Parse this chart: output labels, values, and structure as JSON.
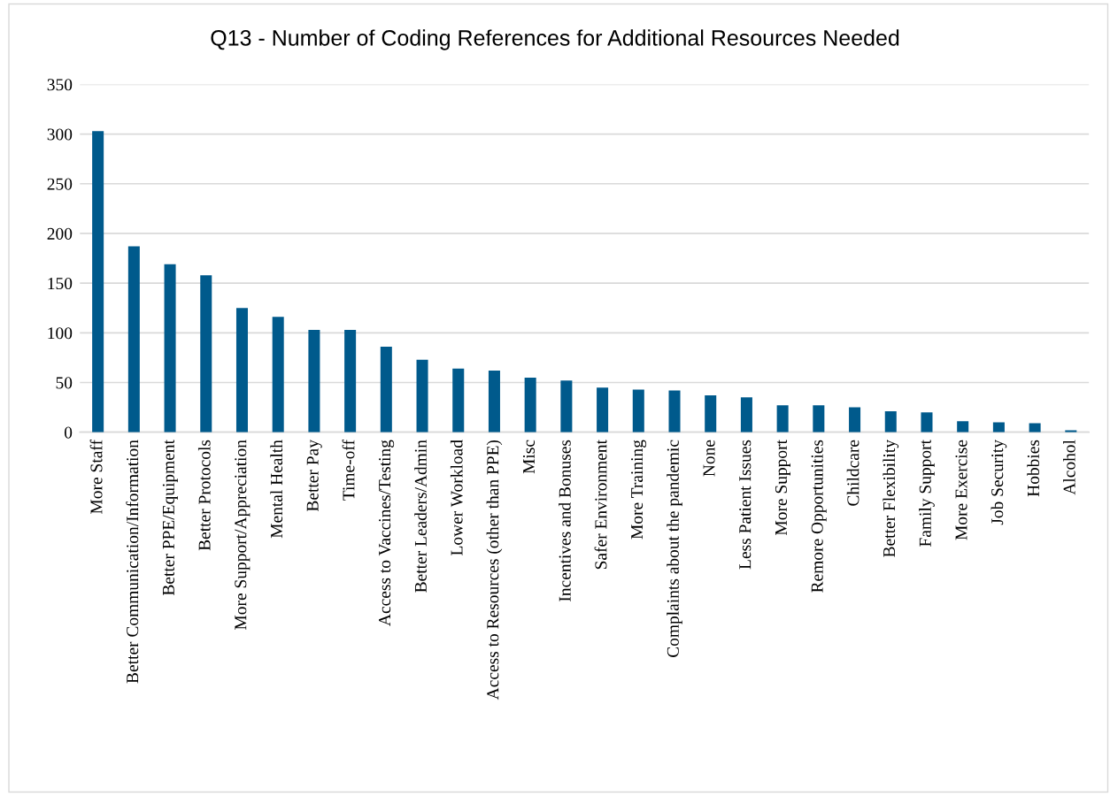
{
  "chart_data": {
    "type": "bar",
    "title": "Q13 - Number of Coding References for Additional Resources Needed",
    "categories": [
      "More Staff",
      "Better Communication/Information",
      "Better PPE/Equipment",
      "Better Protocols",
      "More Support/Appreciation",
      "Mental Health",
      "Better Pay",
      "Time-off",
      "Access to Vaccines/Testing",
      "Better Leaders/Admin",
      "Lower Workload",
      "Access to Resources (other than PPE)",
      "Misc",
      "Incentives and Bonuses",
      "Safer Environment",
      "More Training",
      "Complaints about the pandemic",
      "None",
      "Less Patient Issues",
      "More Support",
      "Remore Opportunities",
      "Childcare",
      "Better Flexibility",
      "Family Support",
      "More Exercise",
      "Job Security",
      "Hobbies",
      "Alcohol"
    ],
    "values": [
      303,
      187,
      169,
      158,
      125,
      116,
      103,
      103,
      86,
      73,
      64,
      62,
      55,
      52,
      45,
      43,
      42,
      37,
      35,
      27,
      27,
      25,
      21,
      20,
      11,
      10,
      9,
      2
    ],
    "color": "#005a8c",
    "ylim": [
      0,
      350
    ],
    "yticks": [
      0,
      50,
      100,
      150,
      200,
      250,
      300,
      350
    ],
    "grid": "y"
  }
}
